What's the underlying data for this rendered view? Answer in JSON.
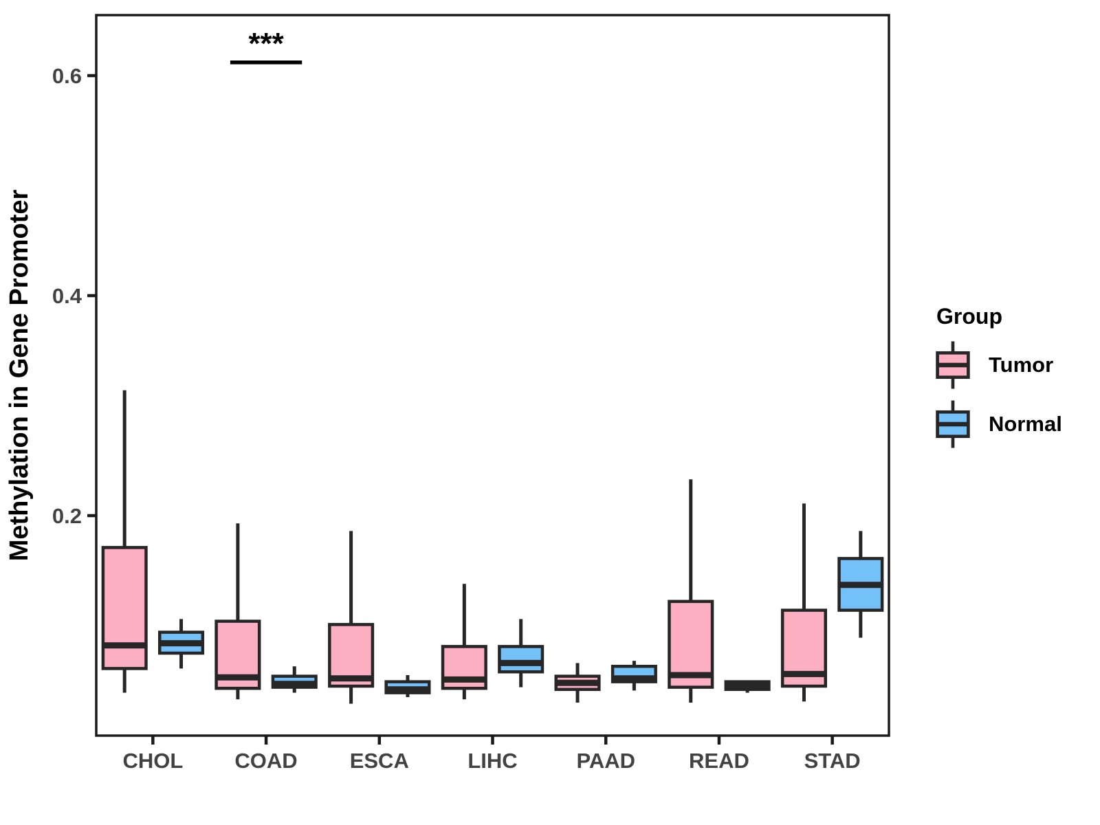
{
  "colors": {
    "tumor": "#FBAFC1",
    "normal": "#74C0F8",
    "box_stroke": "#262626",
    "axis": "#1A1A1A",
    "tick_label": "#424242",
    "annotation": "#000000"
  },
  "legend": {
    "title": "Group",
    "entries": [
      {
        "label": "Tumor",
        "color": "#FBAFC1"
      },
      {
        "label": "Normal",
        "color": "#74C0F8"
      }
    ]
  },
  "chart_data": {
    "type": "boxplot",
    "title": "",
    "xlabel": "",
    "ylabel": "Methylation in Gene Promoter",
    "categories": [
      "CHOL",
      "COAD",
      "ESCA",
      "LIHC",
      "PAAD",
      "READ",
      "STAD"
    ],
    "y_ticks": [
      0.2,
      0.4,
      0.6
    ],
    "ylim": [
      0,
      0.655
    ],
    "grid": false,
    "legend_position": "right",
    "series": [
      {
        "name": "Tumor",
        "color": "#FBAFC1",
        "boxes": [
          {
            "category": "CHOL",
            "whisker_low": 0.039,
            "q1": 0.061,
            "median": 0.082,
            "q3": 0.171,
            "whisker_high": 0.314
          },
          {
            "category": "COAD",
            "whisker_low": 0.033,
            "q1": 0.043,
            "median": 0.053,
            "q3": 0.104,
            "whisker_high": 0.193
          },
          {
            "category": "ESCA",
            "whisker_low": 0.029,
            "q1": 0.045,
            "median": 0.052,
            "q3": 0.101,
            "whisker_high": 0.186
          },
          {
            "category": "LIHC",
            "whisker_low": 0.033,
            "q1": 0.043,
            "median": 0.051,
            "q3": 0.081,
            "whisker_high": 0.138
          },
          {
            "category": "PAAD",
            "whisker_low": 0.03,
            "q1": 0.042,
            "median": 0.048,
            "q3": 0.054,
            "whisker_high": 0.066
          },
          {
            "category": "READ",
            "whisker_low": 0.03,
            "q1": 0.044,
            "median": 0.055,
            "q3": 0.122,
            "whisker_high": 0.233
          },
          {
            "category": "STAD",
            "whisker_low": 0.031,
            "q1": 0.045,
            "median": 0.056,
            "q3": 0.114,
            "whisker_high": 0.211
          }
        ]
      },
      {
        "name": "Normal",
        "color": "#74C0F8",
        "boxes": [
          {
            "category": "CHOL",
            "whisker_low": 0.061,
            "q1": 0.075,
            "median": 0.084,
            "q3": 0.094,
            "whisker_high": 0.106
          },
          {
            "category": "COAD",
            "whisker_low": 0.039,
            "q1": 0.044,
            "median": 0.047,
            "q3": 0.054,
            "whisker_high": 0.063
          },
          {
            "category": "ESCA",
            "whisker_low": 0.035,
            "q1": 0.039,
            "median": 0.042,
            "q3": 0.049,
            "whisker_high": 0.055
          },
          {
            "category": "LIHC",
            "whisker_low": 0.044,
            "q1": 0.058,
            "median": 0.066,
            "q3": 0.081,
            "whisker_high": 0.106
          },
          {
            "category": "PAAD",
            "whisker_low": 0.041,
            "q1": 0.049,
            "median": 0.052,
            "q3": 0.063,
            "whisker_high": 0.068
          },
          {
            "category": "READ",
            "whisker_low": 0.039,
            "q1": 0.042,
            "median": 0.046,
            "q3": 0.049,
            "whisker_high": 0.049
          },
          {
            "category": "STAD",
            "whisker_low": 0.089,
            "q1": 0.114,
            "median": 0.137,
            "q3": 0.161,
            "whisker_high": 0.186
          }
        ]
      }
    ],
    "annotations": [
      {
        "category": "COAD",
        "label": "***",
        "y": 0.612
      }
    ]
  }
}
